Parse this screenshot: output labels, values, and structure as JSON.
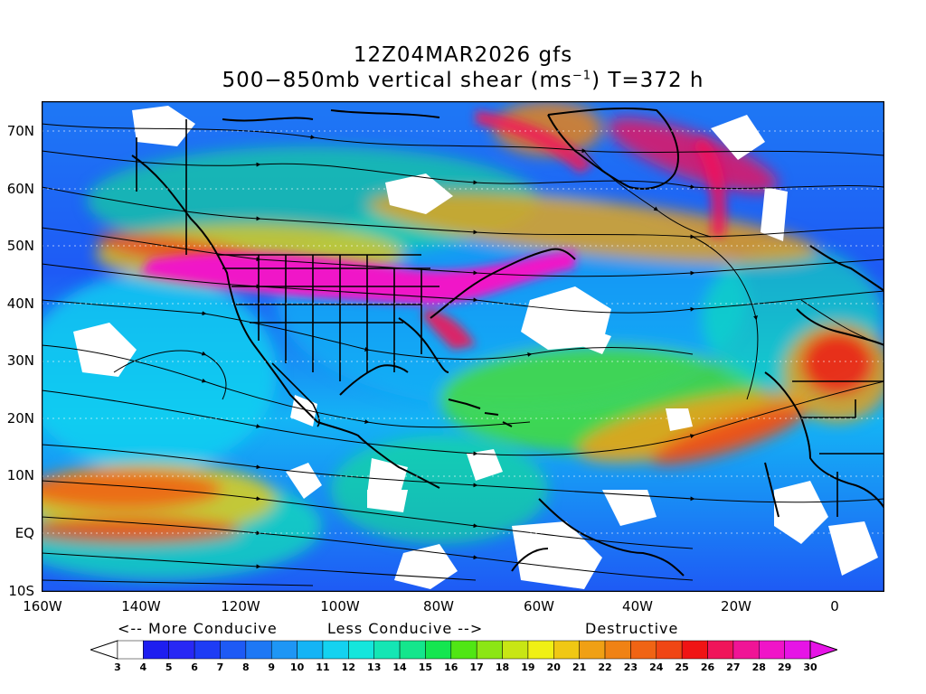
{
  "title": {
    "line1": "12Z04MAR2026 gfs",
    "line2_prefix": "500−850mb vertical shear (ms",
    "line2_sup": "−1",
    "line2_suffix": ") T=372 h"
  },
  "y_axis_labels": [
    "70N",
    "60N",
    "50N",
    "40N",
    "30N",
    "20N",
    "10N",
    "EQ",
    "10S"
  ],
  "x_axis_labels": [
    "160W",
    "140W",
    "120W",
    "100W",
    "80W",
    "60W",
    "40W",
    "20W",
    "0"
  ],
  "legend_text": {
    "more_conducive": "<-- More Conducive",
    "less_conducive": "Less Conducive -->",
    "destructive": "Destructive"
  },
  "colorbar": {
    "labels": [
      "3",
      "4",
      "5",
      "6",
      "7",
      "8",
      "9",
      "10",
      "11",
      "12",
      "13",
      "14",
      "15",
      "16",
      "17",
      "18",
      "19",
      "20",
      "21",
      "22",
      "23",
      "24",
      "25",
      "26",
      "27",
      "28",
      "29",
      "30"
    ],
    "colors": [
      "#ffffff",
      "#1e1ef0",
      "#2828f5",
      "#1e3cf5",
      "#1e5af5",
      "#1e78f5",
      "#1e96f5",
      "#14b4f5",
      "#14d2f0",
      "#14e6dc",
      "#14e6b4",
      "#14e68c",
      "#14e650",
      "#50e614",
      "#8ce614",
      "#c8e614",
      "#f0f014",
      "#f0c814",
      "#f0a014",
      "#f08214",
      "#f06414",
      "#f04614",
      "#f01414",
      "#f0145a",
      "#f01496",
      "#f014c8",
      "#e614e6"
    ]
  },
  "map_features": {
    "colors": {
      "calm": "#ffffff",
      "low": "#1e3cf5",
      "moderate": "#14d2f0",
      "high": "#f08214",
      "extreme": "#f014c8",
      "land": "#000000"
    }
  }
}
